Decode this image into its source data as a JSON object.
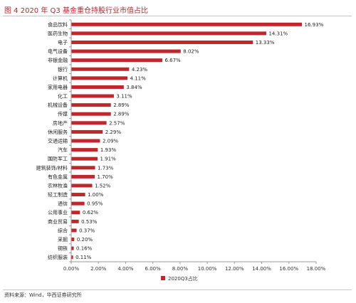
{
  "figure": {
    "title": "图 4  2020 年 Q3 基金重仓持股行业市值占比",
    "source": "资料来源：Wind，华西证券研究所"
  },
  "colors": {
    "bar": "#c0272d",
    "axis": "#999999"
  },
  "chart_data": {
    "type": "bar",
    "orientation": "horizontal",
    "categories": [
      "食品饮料",
      "医药生物",
      "电子",
      "电气设备",
      "非银金融",
      "银行",
      "计算机",
      "家用电器",
      "化工",
      "机械设备",
      "传媒",
      "房地产",
      "休闲服务",
      "交通运输",
      "汽车",
      "国防军工",
      "建筑装饰/材料",
      "有色金属",
      "农林牧渔",
      "轻工制造",
      "通信",
      "公用事业",
      "商业贸易",
      "综合",
      "采掘",
      "钢铁",
      "纺织服装"
    ],
    "series": [
      {
        "name": "2020Q3占比",
        "values": [
          16.93,
          14.31,
          13.33,
          8.02,
          6.67,
          4.23,
          4.11,
          3.84,
          3.11,
          2.89,
          2.89,
          2.57,
          2.29,
          2.09,
          1.93,
          1.91,
          1.73,
          1.7,
          1.52,
          1.0,
          0.95,
          0.62,
          0.53,
          0.37,
          0.2,
          0.16,
          0.11
        ],
        "labels": [
          "16.93%",
          "14.31%",
          "13.33%",
          "8.02%",
          "6.67%",
          "4.23%",
          "4.11%",
          "3.84%",
          "3.11%",
          "2.89%",
          "2.89%",
          "2.57%",
          "2.29%",
          "2.09%",
          "1.93%",
          "1.91%",
          "1.73%",
          "1.70%",
          "1.52%",
          "1.00%",
          "0.95%",
          "0.62%",
          "0.53%",
          "0.37%",
          "0.20%",
          "0.16%",
          "0.11%"
        ]
      }
    ],
    "xlim": [
      0,
      18
    ],
    "xticks": [
      0,
      2,
      4,
      6,
      8,
      10,
      12,
      14,
      16,
      18
    ],
    "xtick_labels": [
      "0.00%",
      "2.00%",
      "4.00%",
      "6.00%",
      "8.00%",
      "10.00%",
      "12.00%",
      "14.00%",
      "16.00%",
      "18.00%"
    ],
    "grid": false,
    "legend": {
      "position": "bottom-center",
      "entries": [
        "2020Q3占比"
      ]
    }
  }
}
